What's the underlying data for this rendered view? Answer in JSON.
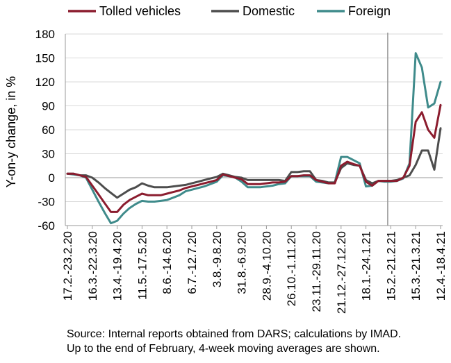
{
  "chart_data": {
    "type": "line",
    "title": "",
    "ylabel": "Y-on-y change, in %",
    "xlabel": "",
    "ylim": [
      -60,
      180
    ],
    "yticks": [
      -60,
      -30,
      0,
      30,
      60,
      90,
      120,
      150,
      180
    ],
    "grid": "horizontal",
    "legend_position": "top",
    "x_tick_labels": [
      "17.2.-23.2.20",
      "16.3.-22.3.20",
      "13.4.-19.4.20",
      "11.5.-17.5.20",
      "8.6.-14.6.20",
      "6.7.-12.7.20",
      "3.8.-9.8.20",
      "31.8.-6.9.20",
      "28.9.-4.10.20",
      "26.10.-1.11.20",
      "23.11.-29.11.20",
      "21.12.-27.12.20",
      "18.1.-24.1.21",
      "15.2.-21.2.21",
      "15.3.-21.3.21",
      "12.4.-18.4.21"
    ],
    "x_tick_weeks": [
      0,
      4,
      8,
      12,
      16,
      20,
      24,
      28,
      32,
      36,
      40,
      44,
      48,
      52,
      56,
      60
    ],
    "divider_week": 51,
    "series": [
      {
        "name": "Tolled vehicles",
        "color": "#8b1c2e",
        "values": [
          5,
          5,
          3,
          1,
          -10,
          -21,
          -32,
          -43,
          -43,
          -34,
          -28,
          -24,
          -20,
          -22,
          -22,
          -22,
          -20,
          -18,
          -16,
          -13,
          -11,
          -9,
          -7,
          -5,
          -3,
          4,
          2,
          0,
          -2,
          -8,
          -8,
          -8,
          -7,
          -6,
          -6,
          -5,
          2,
          2,
          3,
          3,
          -3,
          -5,
          -7,
          -7,
          15,
          20,
          17,
          15,
          -5,
          -10,
          -4,
          -4,
          -4,
          -4,
          0,
          15,
          70,
          82,
          60,
          50,
          91
        ]
      },
      {
        "name": "Domestic",
        "color": "#4d4d4d",
        "values": [
          5,
          5,
          3,
          3,
          0,
          -6,
          -13,
          -19,
          -25,
          -20,
          -15,
          -12,
          -7,
          -10,
          -12,
          -12,
          -12,
          -11,
          -10,
          -9,
          -7,
          -5,
          -3,
          -1,
          1,
          5,
          3,
          1,
          0,
          -3,
          -3,
          -3,
          -3,
          -3,
          -3,
          -4,
          7,
          7,
          8,
          8,
          -3,
          -4,
          -6,
          -6,
          12,
          18,
          16,
          15,
          -3,
          -7,
          -4,
          -4,
          -4,
          -3,
          0,
          3,
          16,
          34,
          34,
          10,
          62
        ]
      },
      {
        "name": "Foreign",
        "color": "#3f8b8b",
        "values": [
          5,
          4,
          3,
          0,
          -15,
          -30,
          -44,
          -57,
          -54,
          -45,
          -38,
          -33,
          -29,
          -30,
          -30,
          -29,
          -28,
          -25,
          -22,
          -17,
          -15,
          -13,
          -11,
          -8,
          -5,
          3,
          2,
          0,
          -5,
          -12,
          -12,
          -12,
          -11,
          -10,
          -8,
          -7,
          2,
          2,
          2,
          2,
          -5,
          -6,
          -7,
          -6,
          26,
          26,
          22,
          18,
          -11,
          -10,
          -4,
          -5,
          -5,
          -4,
          -1,
          18,
          156,
          138,
          88,
          93,
          120
        ]
      }
    ]
  },
  "footer": {
    "source_line1": "Source: Internal reports obtained from DARS; calculations by IMAD.",
    "source_line2": "Up to the end of February, 4-week moving averages are shown."
  }
}
